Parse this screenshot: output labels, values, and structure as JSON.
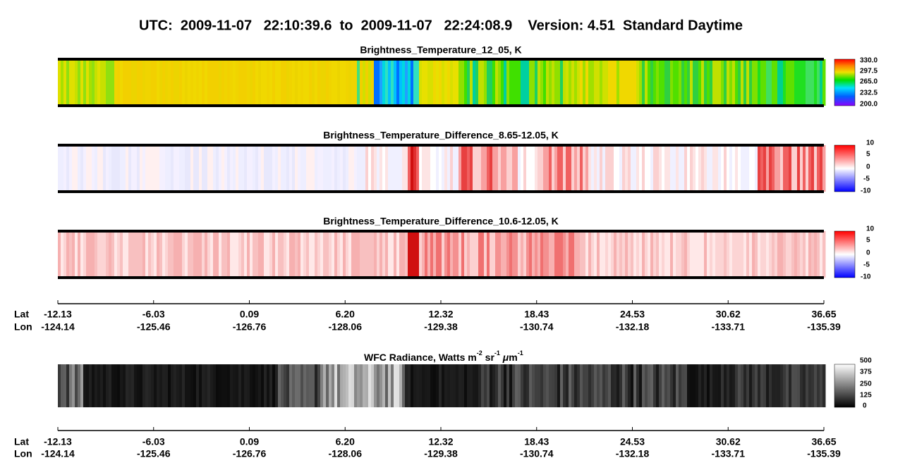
{
  "title": "UTC:  2009-11-07   22:10:39.6  to  2009-11-07   22:24:08.9    Version: 4.51  Standard Daytime",
  "panels": [
    {
      "title": "Brightness_Temperature_12_05, K",
      "colorbar_labels": [
        "330.0",
        "297.5",
        "265.0",
        "232.5",
        "200.0"
      ]
    },
    {
      "title": "Brightness_Temperature_Difference_8.65-12.05, K",
      "colorbar_labels": [
        "10",
        "5",
        "0",
        "-5",
        "-10"
      ]
    },
    {
      "title": "Brightness_Temperature_Difference_10.6-12.05, K",
      "colorbar_labels": [
        "10",
        "5",
        "0",
        "-5",
        "-10"
      ]
    }
  ],
  "wfc_panel": {
    "title_parts": [
      "WFC Radiance, Watts m",
      "-2",
      " sr",
      "-1",
      " μ",
      "m",
      "-1"
    ],
    "colorbar_labels": [
      "500",
      "375",
      "250",
      "125",
      "0"
    ]
  },
  "axes": [
    {
      "lat_label": "Lat",
      "lon_label": "Lon",
      "lat": [
        "-12.13",
        "-6.03",
        "0.09",
        "6.20",
        "12.32",
        "18.43",
        "24.53",
        "30.62",
        "36.65"
      ],
      "lon": [
        "-124.14",
        "-125.46",
        "-126.76",
        "-128.06",
        "-129.38",
        "-130.74",
        "-132.18",
        "-133.71",
        "-135.39"
      ]
    },
    {
      "lat_label": "Lat",
      "lon_label": "Lon",
      "lat": [
        "-12.13",
        "-6.03",
        "0.09",
        "6.20",
        "12.32",
        "18.43",
        "24.53",
        "30.62",
        "36.65"
      ],
      "lon": [
        "-124.14",
        "-125.46",
        "-126.76",
        "-128.06",
        "-129.38",
        "-130.74",
        "-132.18",
        "-133.71",
        "-135.39"
      ]
    }
  ]
}
